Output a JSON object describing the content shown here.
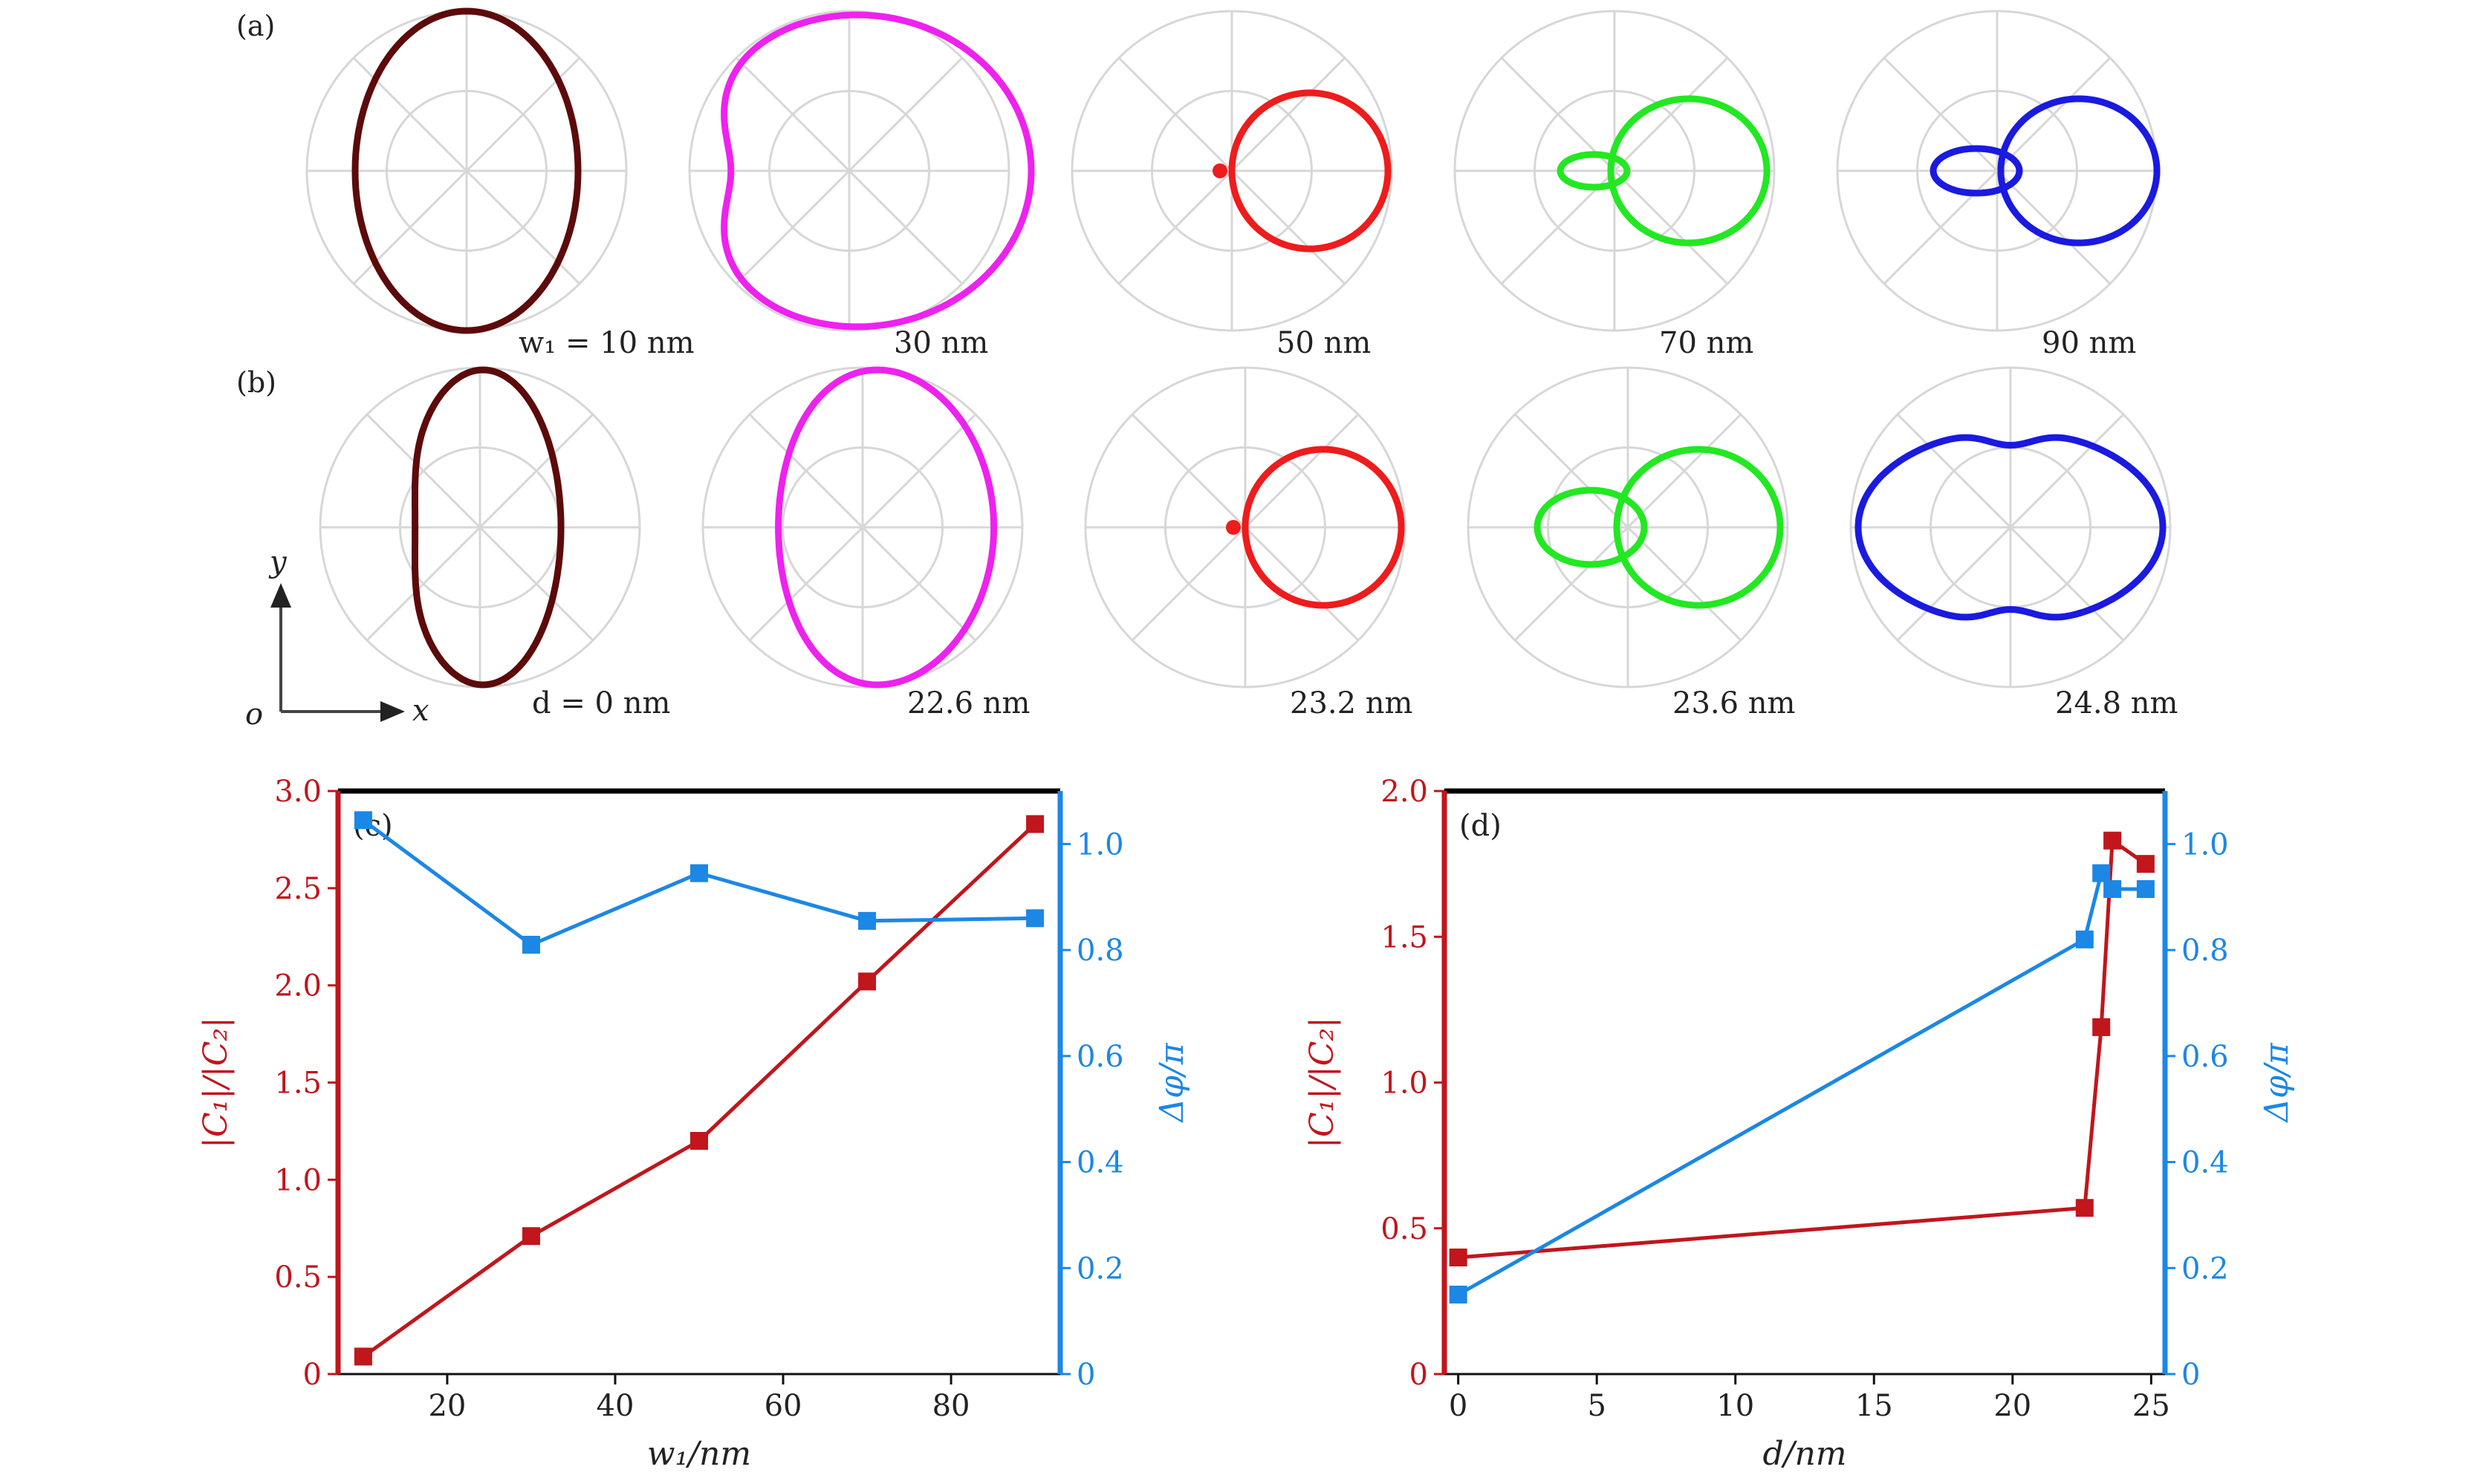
{
  "figure": {
    "panel_a_label": "(a)",
    "panel_b_label": "(b)",
    "axes_indicator": {
      "y": "y",
      "x": "x",
      "origin": "o"
    }
  },
  "polar_rows": [
    {
      "id": "a",
      "captions": [
        "w₁ = 10 nm",
        "30 nm",
        "50 nm",
        "70 nm",
        "90 nm"
      ],
      "colors": [
        "#5c0a0a",
        "#ee22ee",
        "#ee1c1c",
        "#22e822",
        "#1a1ae0"
      ]
    },
    {
      "id": "b",
      "captions": [
        "d = 0 nm",
        "22.6 nm",
        "23.2 nm",
        "23.6 nm",
        "24.8 nm"
      ],
      "colors": [
        "#5c0a0a",
        "#ee22ee",
        "#ee1c1c",
        "#22e822",
        "#1a1ae0"
      ]
    }
  ],
  "chart_data": [
    {
      "panel": "(c)",
      "type": "line",
      "xlabel": "w₁/nm",
      "ylabel_left": "|C₁|/|C₂|",
      "ylabel_right": "Δφ/π",
      "xlim": [
        7,
        93
      ],
      "ylim_left": [
        0,
        3.0
      ],
      "ylim_right": [
        0,
        1.1
      ],
      "xticks": [
        20,
        40,
        60,
        80
      ],
      "yticks_left": [
        0,
        0.5,
        1.0,
        1.5,
        2.0,
        2.5,
        3.0
      ],
      "yticks_right": [
        0,
        0.2,
        0.4,
        0.6,
        0.8,
        1.0
      ],
      "series": [
        {
          "axis": "left",
          "color": "#c0161c",
          "x": [
            10,
            30,
            50,
            70,
            90
          ],
          "y": [
            0.09,
            0.71,
            1.2,
            2.02,
            2.83
          ]
        },
        {
          "axis": "right",
          "color": "#1c87e5",
          "x": [
            10,
            30,
            50,
            70,
            90
          ],
          "y": [
            1.045,
            0.81,
            0.945,
            0.855,
            0.86
          ]
        }
      ]
    },
    {
      "panel": "(d)",
      "type": "line",
      "xlabel": "d/nm",
      "ylabel_left": "|C₁|/|C₂|",
      "ylabel_right": "Δφ/π",
      "xlim": [
        -0.5,
        25.5
      ],
      "ylim_left": [
        0,
        2.0
      ],
      "ylim_right": [
        0,
        1.1
      ],
      "xticks": [
        0,
        5,
        10,
        15,
        20,
        25
      ],
      "yticks_left": [
        0,
        0.5,
        1.0,
        1.5,
        2.0
      ],
      "yticks_right": [
        0,
        0.2,
        0.4,
        0.6,
        0.8,
        1.0
      ],
      "series": [
        {
          "axis": "left",
          "color": "#c0161c",
          "x": [
            0,
            22.6,
            23.2,
            23.6,
            24.8
          ],
          "y": [
            0.4,
            0.57,
            1.19,
            1.83,
            1.75
          ]
        },
        {
          "axis": "right",
          "color": "#1c87e5",
          "x": [
            0,
            22.6,
            23.2,
            23.6,
            24.8
          ],
          "y": [
            0.15,
            0.82,
            0.945,
            0.915,
            0.915
          ]
        }
      ]
    }
  ]
}
